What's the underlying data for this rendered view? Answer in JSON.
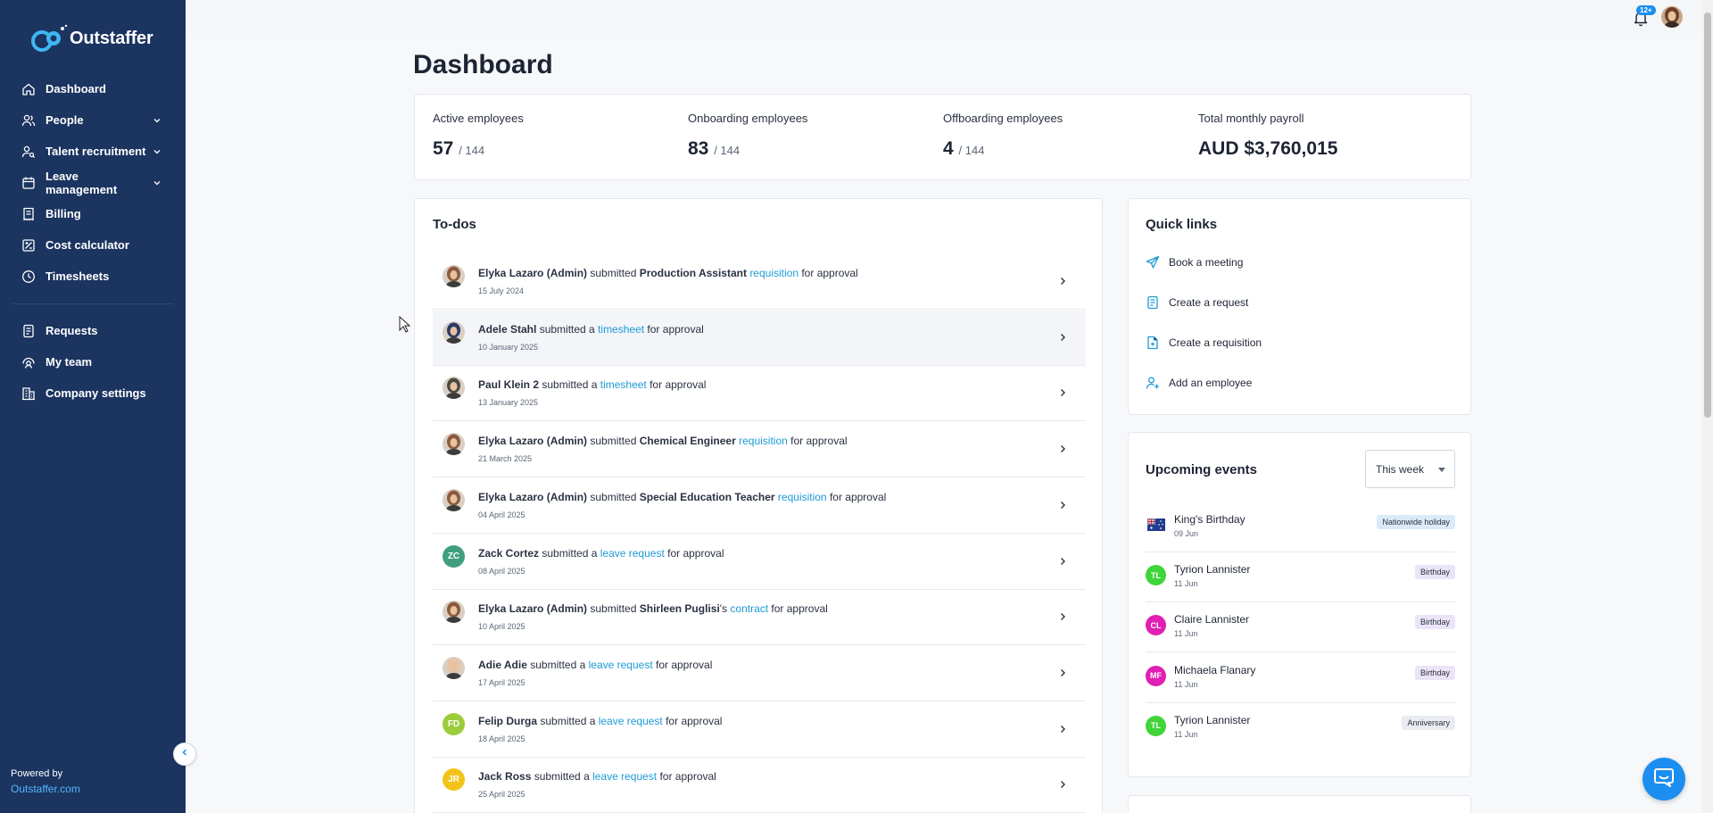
{
  "app": {
    "brand": "Outstaffer",
    "powered_by": "Powered by",
    "powered_link": "Outstaffer.com"
  },
  "sidebar": {
    "items": [
      {
        "label": "Dashboard",
        "icon": "home-icon",
        "expandable": false
      },
      {
        "label": "People",
        "icon": "people-icon",
        "expandable": true
      },
      {
        "label": "Talent recruitment",
        "icon": "user-search-icon",
        "expandable": true
      },
      {
        "label": "Leave management",
        "icon": "calendar-icon",
        "expandable": true
      },
      {
        "label": "Billing",
        "icon": "billing-icon",
        "expandable": false
      },
      {
        "label": "Cost calculator",
        "icon": "calculator-icon",
        "expandable": false
      },
      {
        "label": "Timesheets",
        "icon": "clock-icon",
        "expandable": false
      }
    ],
    "items_secondary": [
      {
        "label": "Requests",
        "icon": "request-icon"
      },
      {
        "label": "My team",
        "icon": "team-icon"
      },
      {
        "label": "Company settings",
        "icon": "building-icon"
      }
    ]
  },
  "header": {
    "notification_count": "12+"
  },
  "page": {
    "title": "Dashboard"
  },
  "stats": [
    {
      "label": "Active employees",
      "value": "57",
      "total": "/ 144"
    },
    {
      "label": "Onboarding employees",
      "value": "83",
      "total": "/ 144"
    },
    {
      "label": "Offboarding employees",
      "value": "4",
      "total": "/ 144"
    },
    {
      "label": "Total monthly payroll",
      "value": "AUD $3,760,015",
      "total": ""
    }
  ],
  "todos": {
    "title": "To-dos",
    "items": [
      {
        "parts": [
          {
            "t": "Elyka Lazaro (Admin)",
            "s": "b"
          },
          {
            "t": " submitted ",
            "s": ""
          },
          {
            "t": "Production Assistant",
            "s": "b"
          },
          {
            "t": " ",
            "s": ""
          },
          {
            "t": "requisition",
            "s": "l"
          },
          {
            "t": " for approval",
            "s": ""
          }
        ],
        "date": "15 July 2024",
        "avatar": {
          "type": "photo",
          "color": "#8b5a3c"
        }
      },
      {
        "parts": [
          {
            "t": "Adele Stahl",
            "s": "b"
          },
          {
            "t": " submitted a ",
            "s": ""
          },
          {
            "t": "timesheet",
            "s": "l"
          },
          {
            "t": " for approval",
            "s": ""
          }
        ],
        "date": "10 January 2025",
        "avatar": {
          "type": "photo",
          "color": "#2b3a66"
        }
      },
      {
        "parts": [
          {
            "t": "Paul Klein 2",
            "s": "b"
          },
          {
            "t": " submitted a ",
            "s": ""
          },
          {
            "t": "timesheet",
            "s": "l"
          },
          {
            "t": " for approval",
            "s": ""
          }
        ],
        "date": "13 January 2025",
        "avatar": {
          "type": "photo",
          "color": "#4a4a42"
        }
      },
      {
        "parts": [
          {
            "t": "Elyka Lazaro (Admin)",
            "s": "b"
          },
          {
            "t": " submitted ",
            "s": ""
          },
          {
            "t": "Chemical Engineer",
            "s": "b"
          },
          {
            "t": " ",
            "s": ""
          },
          {
            "t": "requisition",
            "s": "l"
          },
          {
            "t": " for approval",
            "s": ""
          }
        ],
        "date": "21 March 2025",
        "avatar": {
          "type": "photo",
          "color": "#8b5a3c"
        }
      },
      {
        "parts": [
          {
            "t": "Elyka Lazaro (Admin)",
            "s": "b"
          },
          {
            "t": " submitted ",
            "s": ""
          },
          {
            "t": "Special Education Teacher",
            "s": "b"
          },
          {
            "t": " ",
            "s": ""
          },
          {
            "t": "requisition",
            "s": "l"
          },
          {
            "t": " for approval",
            "s": ""
          }
        ],
        "date": "04 April 2025",
        "avatar": {
          "type": "photo",
          "color": "#8b5a3c"
        }
      },
      {
        "parts": [
          {
            "t": "Zack Cortez",
            "s": "b"
          },
          {
            "t": " submitted a ",
            "s": ""
          },
          {
            "t": "leave request",
            "s": "l"
          },
          {
            "t": " for approval",
            "s": ""
          }
        ],
        "date": "08 April 2025",
        "avatar": {
          "type": "initials",
          "initials": "ZC",
          "color": "#3f9e7e"
        }
      },
      {
        "parts": [
          {
            "t": "Elyka Lazaro (Admin)",
            "s": "b"
          },
          {
            "t": " submitted ",
            "s": ""
          },
          {
            "t": "Shirleen Puglisi",
            "s": "b"
          },
          {
            "t": "'s ",
            "s": ""
          },
          {
            "t": "contract",
            "s": "l"
          },
          {
            "t": " for approval",
            "s": ""
          }
        ],
        "date": "10 April 2025",
        "avatar": {
          "type": "photo",
          "color": "#8b5a3c"
        }
      },
      {
        "parts": [
          {
            "t": "Adie Adie",
            "s": "b"
          },
          {
            "t": " submitted a ",
            "s": ""
          },
          {
            "t": "leave request",
            "s": "l"
          },
          {
            "t": " for approval",
            "s": ""
          }
        ],
        "date": "17 April 2025",
        "avatar": {
          "type": "photo",
          "color": "#e8c3a4"
        }
      },
      {
        "parts": [
          {
            "t": "Felip Durga",
            "s": "b"
          },
          {
            "t": " submitted a ",
            "s": ""
          },
          {
            "t": "leave request",
            "s": "l"
          },
          {
            "t": " for approval",
            "s": ""
          }
        ],
        "date": "18 April 2025",
        "avatar": {
          "type": "initials",
          "initials": "FD",
          "color": "#9ccc3c"
        }
      },
      {
        "parts": [
          {
            "t": "Jack Ross",
            "s": "b"
          },
          {
            "t": " submitted a ",
            "s": ""
          },
          {
            "t": "leave request",
            "s": "l"
          },
          {
            "t": " for approval",
            "s": ""
          }
        ],
        "date": "25 April 2025",
        "avatar": {
          "type": "initials",
          "initials": "JR",
          "color": "#f2c41a"
        }
      }
    ]
  },
  "quick_links": {
    "title": "Quick links",
    "items": [
      {
        "label": "Book a meeting",
        "icon": "send-icon"
      },
      {
        "label": "Create a request",
        "icon": "document-icon"
      },
      {
        "label": "Create a requisition",
        "icon": "file-icon"
      },
      {
        "label": "Add an employee",
        "icon": "add-user-icon"
      }
    ]
  },
  "events": {
    "title": "Upcoming events",
    "filter_value": "This week",
    "items": [
      {
        "name": "King's Birthday",
        "date": "09 Jun",
        "badge": "Nationwide holiday",
        "badge_bg": "#dbeaf7",
        "badge_fg": "#2a3142",
        "icon": {
          "type": "flag"
        }
      },
      {
        "name": "Tyrion Lannister",
        "date": "11 Jun",
        "badge": "Birthday",
        "badge_bg": "#ebe4f7",
        "badge_fg": "#2a3142",
        "icon": {
          "type": "initials",
          "initials": "TL",
          "color": "#3fd43a"
        }
      },
      {
        "name": "Claire Lannister",
        "date": "11 Jun",
        "badge": "Birthday",
        "badge_bg": "#ebe4f7",
        "badge_fg": "#2a3142",
        "icon": {
          "type": "initials",
          "initials": "CL",
          "color": "#e11fb4"
        }
      },
      {
        "name": "Michaela Flanary",
        "date": "11 Jun",
        "badge": "Birthday",
        "badge_bg": "#ebe4f7",
        "badge_fg": "#2a3142",
        "icon": {
          "type": "initials",
          "initials": "MF",
          "color": "#e11fb4"
        }
      },
      {
        "name": "Tyrion Lannister",
        "date": "11 Jun",
        "badge": "Anniversary",
        "badge_bg": "#e9ecf1",
        "badge_fg": "#2a3142",
        "icon": {
          "type": "initials",
          "initials": "TL",
          "color": "#3fd43a"
        }
      }
    ]
  },
  "colors": {
    "sidebar_bg": "#1b3460",
    "link": "#1e9ad6",
    "accent": "#1c8ef0"
  }
}
